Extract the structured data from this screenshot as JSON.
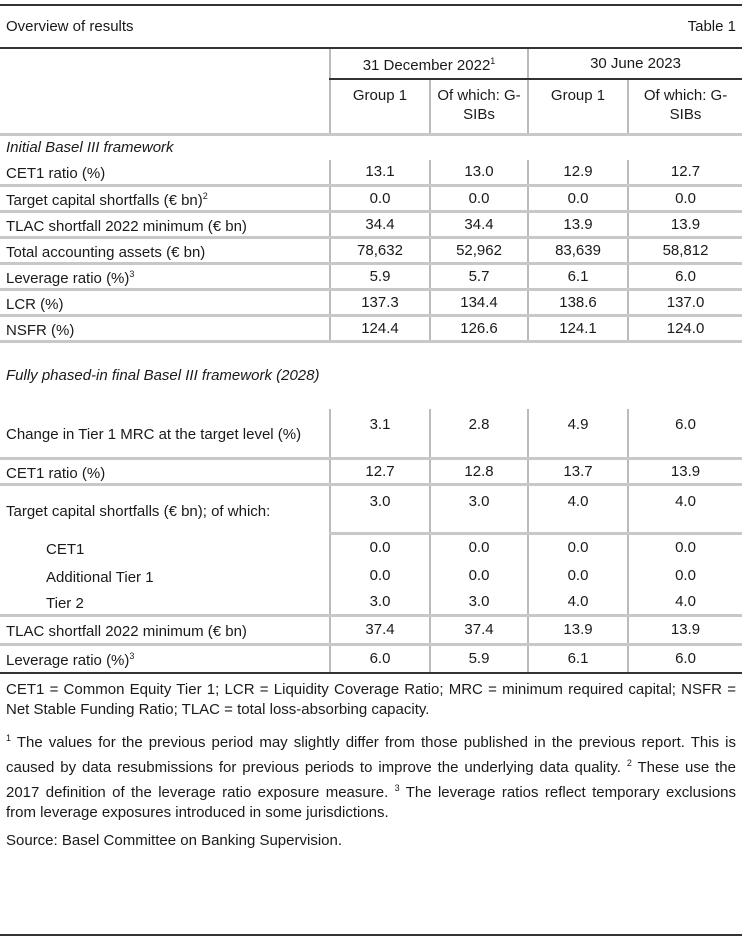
{
  "title": "Overview of results",
  "table_label": "Table 1",
  "periods": [
    "31 December 2022",
    "30 June 2023"
  ],
  "period_note": "1",
  "columns": [
    "Group 1",
    "Of which: G-SIBs",
    "Group 1",
    "Of which: G-SIBs"
  ],
  "section1": "Initial Basel III framework",
  "rows1": [
    {
      "label": "CET1 ratio (%)",
      "sup": "",
      "v": [
        "13.1",
        "13.0",
        "12.9",
        "12.7"
      ]
    },
    {
      "label": "Target capital shortfalls (€ bn)",
      "sup": "2",
      "v": [
        "0.0",
        "0.0",
        "0.0",
        "0.0"
      ]
    },
    {
      "label": "TLAC shortfall 2022 minimum (€ bn)",
      "sup": "",
      "v": [
        "34.4",
        "34.4",
        "13.9",
        "13.9"
      ]
    },
    {
      "label": "Total accounting assets (€ bn)",
      "sup": "",
      "v": [
        "78,632",
        "52,962",
        "83,639",
        "58,812"
      ]
    },
    {
      "label": "Leverage ratio (%)",
      "sup": "3",
      "v": [
        "5.9",
        "5.7",
        "6.1",
        "6.0"
      ]
    },
    {
      "label": "LCR (%)",
      "sup": "",
      "v": [
        "137.3",
        "134.4",
        "138.6",
        "137.0"
      ]
    },
    {
      "label": "NSFR (%)",
      "sup": "",
      "v": [
        "124.4",
        "126.6",
        "124.1",
        "124.0"
      ]
    }
  ],
  "section2": "Fully phased-in final Basel III framework (2028)",
  "rows2": [
    {
      "label": "Change in Tier 1 MRC at the target level (%)",
      "sup": "",
      "v": [
        "3.1",
        "2.8",
        "4.9",
        "6.0"
      ]
    },
    {
      "label": "CET1 ratio (%)",
      "sup": "",
      "v": [
        "12.7",
        "12.8",
        "13.7",
        "13.9"
      ]
    },
    {
      "label": "Target capital shortfalls (€ bn); of which:",
      "sup": "",
      "v": [
        "3.0",
        "3.0",
        "4.0",
        "4.0"
      ]
    },
    {
      "label": "CET1",
      "sup": "",
      "v": [
        "0.0",
        "0.0",
        "0.0",
        "0.0"
      ]
    },
    {
      "label": "Additional Tier 1",
      "sup": "",
      "v": [
        "0.0",
        "0.0",
        "0.0",
        "0.0"
      ]
    },
    {
      "label": "Tier 2",
      "sup": "",
      "v": [
        "3.0",
        "3.0",
        "4.0",
        "4.0"
      ]
    },
    {
      "label": "TLAC shortfall 2022 minimum (€ bn)",
      "sup": "",
      "v": [
        "37.4",
        "37.4",
        "13.9",
        "13.9"
      ]
    },
    {
      "label": "Leverage ratio (%)",
      "sup": "3",
      "v": [
        "6.0",
        "5.9",
        "6.1",
        "6.0"
      ]
    }
  ],
  "abbreviations": "CET1 = Common Equity Tier 1; LCR = Liquidity Coverage Ratio; MRC = minimum required capital; NSFR = Net Stable Funding Ratio; TLAC = total loss-absorbing capacity.",
  "footnotes": [
    {
      "n": "1",
      "text": " The values for the previous period may slightly differ from those published in the previous report. This is caused by data resubmissions for previous periods to improve the underlying data quality. "
    },
    {
      "n": "2",
      "text": " These use the 2017 definition of the leverage ratio exposure measure. "
    },
    {
      "n": "3",
      "text": " The leverage ratios reflect temporary exclusions from leverage exposures introduced in some jurisdictions."
    }
  ],
  "source": "Source: Basel Committee on Banking Supervision."
}
